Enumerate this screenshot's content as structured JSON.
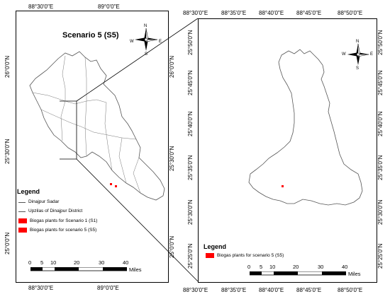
{
  "colors": {
    "plant": "#ff0000",
    "boundary": "#555555",
    "frame": "#000000"
  },
  "left_map": {
    "title": "Scenario 5 (S5)",
    "top_lon": [
      "88°30'0\"E",
      "89°0'0\"E"
    ],
    "bottom_lon": [
      "88°30'0\"E",
      "89°0'0\"E"
    ],
    "left_lat": [
      "26°0'0\"N",
      "25°30'0\"N",
      "25°0'0\"N"
    ],
    "right_lat": [
      "26°0'0\"N",
      "25°30'0\"N",
      "25°0'0\"N"
    ],
    "compass": {
      "n": "N",
      "e": "E",
      "w": "W",
      "s": "S"
    },
    "legend": {
      "title": "Legend",
      "items": [
        {
          "label": "Dinajpur  Sadar",
          "symbol": "line"
        },
        {
          "label": "Upzilas of Dinajpur District",
          "symbol": "line"
        },
        {
          "label": "Biogas plants for Scenario 1 (S1)",
          "symbol": "fill"
        },
        {
          "label": "Biogas plants for scenario 5 (S5)",
          "symbol": "fill"
        }
      ]
    },
    "scale": {
      "ticks": [
        "0",
        "5",
        "10",
        "20",
        "30",
        "40"
      ],
      "unit": "Miles"
    }
  },
  "right_map": {
    "top_lon": [
      "88°30'0\"E",
      "88°35'0\"E",
      "88°40'0\"E",
      "88°45'0\"E",
      "88°50'0\"E"
    ],
    "bottom_lon": [
      "88°30'0\"E",
      "88°35'0\"E",
      "88°40'0\"E",
      "88°45'0\"E",
      "88°50'0\"E"
    ],
    "left_lat": [
      "25°50'0\"N",
      "25°45'0\"N",
      "25°40'0\"N",
      "25°35'0\"N",
      "25°30'0\"N",
      "25°25'0\"N"
    ],
    "right_lat": [
      "25°50'0\"N",
      "25°45'0\"N",
      "25°40'0\"N",
      "25°35'0\"N",
      "25°30'0\"N",
      "25°25'0\"N"
    ],
    "compass": {
      "n": "N",
      "e": "E",
      "w": "W",
      "s": "S"
    },
    "legend": {
      "title": "Legend",
      "items": [
        {
          "label": "Biogas plants for scenario 5 (S5)",
          "symbol": "fill"
        }
      ]
    },
    "scale": {
      "ticks": [
        "0",
        "5",
        "10",
        "20",
        "30",
        "40"
      ],
      "unit": "Miles"
    }
  }
}
